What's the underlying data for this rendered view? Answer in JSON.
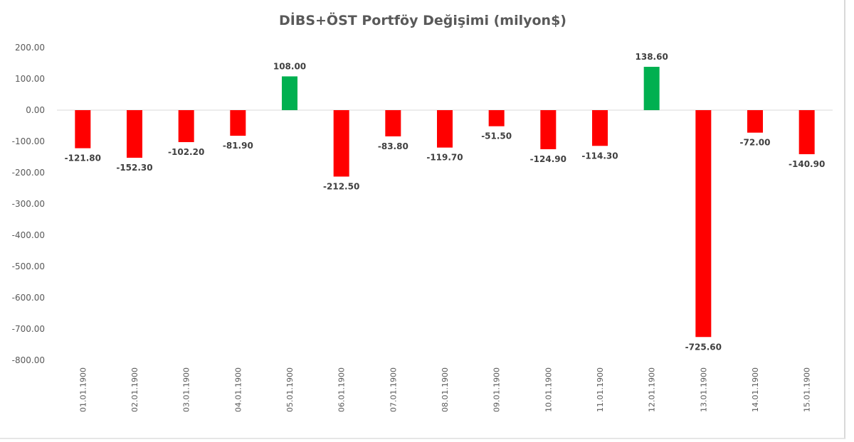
{
  "chart_data": {
    "type": "bar",
    "title": "DİBS+ÖST Portföy Değişimi (milyon$)",
    "xlabel": "",
    "ylabel": "",
    "categories": [
      "01.01.1900",
      "02.01.1900",
      "03.01.1900",
      "04.01.1900",
      "05.01.1900",
      "06.01.1900",
      "07.01.1900",
      "08.01.1900",
      "09.01.1900",
      "10.01.1900",
      "11.01.1900",
      "12.01.1900",
      "13.01.1900",
      "14.01.1900",
      "15.01.1900"
    ],
    "values": [
      -121.8,
      -152.3,
      -102.2,
      -81.9,
      108.0,
      -212.5,
      -83.8,
      -119.7,
      -51.5,
      -124.9,
      -114.3,
      138.6,
      -725.6,
      -72.0,
      -140.9
    ],
    "data_labels": [
      "-121.80",
      "-152.30",
      "-102.20",
      "-81.90",
      "108.00",
      "-212.50",
      "-83.80",
      "-119.70",
      "-51.50",
      "-124.90",
      "-114.30",
      "138.60",
      "-725.60",
      "-72.00",
      "-140.90"
    ],
    "ylim": [
      -800,
      200
    ],
    "yticks": [
      200,
      100,
      0,
      -100,
      -200,
      -300,
      -400,
      -500,
      -600,
      -700,
      -800
    ],
    "ytick_labels": [
      "200.00",
      "100.00",
      "0.00",
      "-100.00",
      "-200.00",
      "-300.00",
      "-400.00",
      "-500.00",
      "-600.00",
      "-700.00",
      "-800.00"
    ],
    "grid": false,
    "legend": "none",
    "colors": {
      "positive": "#00b050",
      "negative": "#ff0000",
      "zero_line": "#d9d9d9",
      "tick_text": "#595959",
      "label_text": "#404040"
    }
  }
}
